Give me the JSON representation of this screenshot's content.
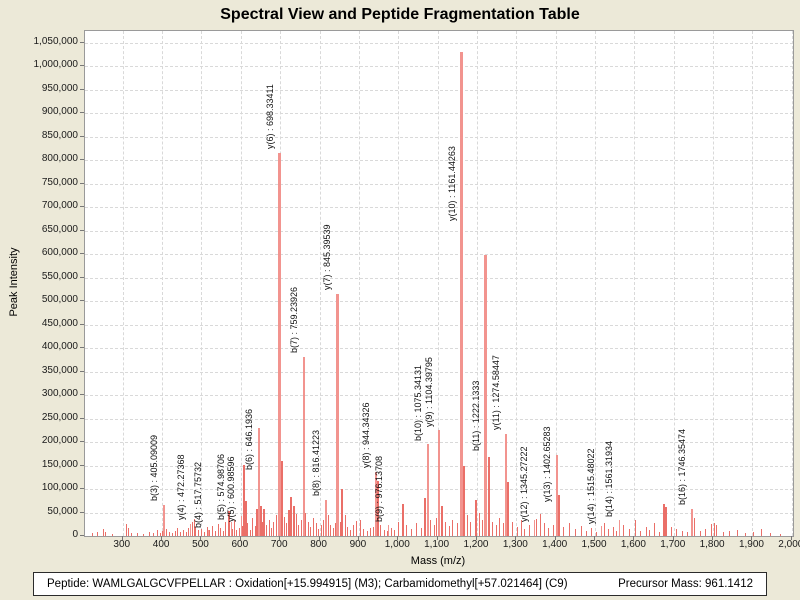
{
  "title": "Spectral View and Peptide Fragmentation Table",
  "colors": {
    "background": "#ece9d8",
    "plot_background": "#ffffff",
    "gridline": "#d9d9d9",
    "axis_border": "#9a9a9a",
    "peak_labeled": "#f2948f",
    "peak_noise": "#ea6f68",
    "text": "#000000"
  },
  "chart_data": {
    "type": "bar",
    "title": "Spectral View and Peptide Fragmentation Table",
    "xlabel": "Mass (m/z)",
    "ylabel": "Peak Intensity",
    "xlim": [
      204,
      2003
    ],
    "ylim": [
      0,
      1075000
    ],
    "grid": true,
    "x_ticks": [
      {
        "v": 300,
        "label": "300"
      },
      {
        "v": 400,
        "label": "400"
      },
      {
        "v": 500,
        "label": "500"
      },
      {
        "v": 600,
        "label": "600"
      },
      {
        "v": 700,
        "label": "700"
      },
      {
        "v": 800,
        "label": "800"
      },
      {
        "v": 900,
        "label": "900"
      },
      {
        "v": 1000,
        "label": "1,000"
      },
      {
        "v": 1100,
        "label": "1,100"
      },
      {
        "v": 1200,
        "label": "1,200"
      },
      {
        "v": 1300,
        "label": "1,300"
      },
      {
        "v": 1400,
        "label": "1,400"
      },
      {
        "v": 1500,
        "label": "1,500"
      },
      {
        "v": 1600,
        "label": "1,600"
      },
      {
        "v": 1700,
        "label": "1,700"
      },
      {
        "v": 1800,
        "label": "1,800"
      },
      {
        "v": 1900,
        "label": "1,900"
      },
      {
        "v": 2000,
        "label": "2,000"
      }
    ],
    "y_ticks": [
      {
        "v": 0,
        "label": "0"
      },
      {
        "v": 50000,
        "label": "50,000"
      },
      {
        "v": 100000,
        "label": "100,000"
      },
      {
        "v": 150000,
        "label": "150,000"
      },
      {
        "v": 200000,
        "label": "200,000"
      },
      {
        "v": 250000,
        "label": "250,000"
      },
      {
        "v": 300000,
        "label": "300,000"
      },
      {
        "v": 350000,
        "label": "350,000"
      },
      {
        "v": 400000,
        "label": "400,000"
      },
      {
        "v": 450000,
        "label": "450,000"
      },
      {
        "v": 500000,
        "label": "500,000"
      },
      {
        "v": 550000,
        "label": "550,000"
      },
      {
        "v": 600000,
        "label": "600,000"
      },
      {
        "v": 650000,
        "label": "650,000"
      },
      {
        "v": 700000,
        "label": "700,000"
      },
      {
        "v": 750000,
        "label": "750,000"
      },
      {
        "v": 800000,
        "label": "800,000"
      },
      {
        "v": 850000,
        "label": "850,000"
      },
      {
        "v": 900000,
        "label": "900,000"
      },
      {
        "v": 950000,
        "label": "950,000"
      },
      {
        "v": 1000000,
        "label": "1,000,000"
      },
      {
        "v": 1050000,
        "label": "1,050,000"
      }
    ],
    "labeled_peaks": [
      {
        "mz": 405.09009,
        "intensity": 65000,
        "label": "b(3) : 405.09009",
        "label_y": 75000
      },
      {
        "mz": 472.27368,
        "intensity": 25000,
        "label": "y(4) : 472.27368",
        "label_y": 33000
      },
      {
        "mz": 517.75732,
        "intensity": 13000,
        "label": "b(4) : 517.75732",
        "label_y": 18000
      },
      {
        "mz": 574.98706,
        "intensity": 30000,
        "label": "b(5) : 574.98706",
        "label_y": 34000
      },
      {
        "mz": 600.98596,
        "intensity": 43000,
        "label": "y(5) : 600.98596",
        "label_y": 30000
      },
      {
        "mz": 646.1936,
        "intensity": 230000,
        "label": "b(6) : 646.1936",
        "label_y": 140000
      },
      {
        "mz": 698.33411,
        "intensity": 815000,
        "label": "y(6) : 698.33411",
        "label_y": 823000
      },
      {
        "mz": 759.23926,
        "intensity": 380000,
        "label": "b(7) : 759.23926",
        "label_y": 390000
      },
      {
        "mz": 816.41223,
        "intensity": 76000,
        "label": "b(8) : 816.41223",
        "label_y": 85000
      },
      {
        "mz": 845.39539,
        "intensity": 515000,
        "label": "y(7) : 845.39539",
        "label_y": 524000
      },
      {
        "mz": 944.34326,
        "intensity": 137000,
        "label": "y(8) : 944.34326",
        "label_y": 144000
      },
      {
        "mz": 976.13708,
        "intensity": 24000,
        "label": "b(9) : 976.13708",
        "label_y": 29000
      },
      {
        "mz": 1075.34131,
        "intensity": 196000,
        "label": "b(10) : 1075.34131",
        "label_y": 203000
      },
      {
        "mz": 1104.39795,
        "intensity": 225000,
        "label": "y(9) : 1104.39795",
        "label_y": 232000
      },
      {
        "mz": 1161.44263,
        "intensity": 1030000,
        "label": "y(10) : 1161.44263",
        "label_y": 670000
      },
      {
        "mz": 1222.1333,
        "intensity": 598000,
        "label": "b(11) : 1222.1333",
        "label_y": 180000
      },
      {
        "mz": 1274.58447,
        "intensity": 218000,
        "label": "y(11) : 1274.58447",
        "label_y": 226000
      },
      {
        "mz": 1345.27222,
        "intensity": 34000,
        "label": "y(12) : 1345.27222",
        "label_y": 29000
      },
      {
        "mz": 1402.65283,
        "intensity": 172000,
        "label": "y(13) : 1402.65283",
        "label_y": 72000
      },
      {
        "mz": 1515.48022,
        "intensity": 21000,
        "label": "y(14) : 1515.48022",
        "label_y": 26000
      },
      {
        "mz": 1561.31934,
        "intensity": 34000,
        "label": "b(14) : 1561.31934",
        "label_y": 40000
      },
      {
        "mz": 1746.35474,
        "intensity": 58000,
        "label": "b(16) : 1746.35474",
        "label_y": 67000
      }
    ],
    "noise_peaks": [
      [
        222,
        6000
      ],
      [
        236,
        9000
      ],
      [
        252,
        14000
      ],
      [
        257,
        9000
      ],
      [
        275,
        5000
      ],
      [
        310,
        26000
      ],
      [
        314,
        18000
      ],
      [
        322,
        7000
      ],
      [
        338,
        6000
      ],
      [
        352,
        5000
      ],
      [
        368,
        9000
      ],
      [
        378,
        6000
      ],
      [
        388,
        12000
      ],
      [
        396,
        7000
      ],
      [
        401,
        11000
      ],
      [
        410,
        15000
      ],
      [
        418,
        8000
      ],
      [
        426,
        6000
      ],
      [
        433,
        11000
      ],
      [
        440,
        16000
      ],
      [
        447,
        8000
      ],
      [
        454,
        12000
      ],
      [
        461,
        9000
      ],
      [
        468,
        17000
      ],
      [
        476,
        30000
      ],
      [
        481,
        36000
      ],
      [
        486,
        20000
      ],
      [
        493,
        12000
      ],
      [
        501,
        15000
      ],
      [
        508,
        9000
      ],
      [
        514,
        20000
      ],
      [
        521,
        13000
      ],
      [
        528,
        22000
      ],
      [
        535,
        11000
      ],
      [
        542,
        25000
      ],
      [
        548,
        16000
      ],
      [
        555,
        11000
      ],
      [
        562,
        30000
      ],
      [
        569,
        54000
      ],
      [
        578,
        14000
      ],
      [
        584,
        34000
      ],
      [
        590,
        12000
      ],
      [
        596,
        18000
      ],
      [
        605,
        22000
      ],
      [
        608,
        152000
      ],
      [
        612,
        75000
      ],
      [
        618,
        28000
      ],
      [
        624,
        13000
      ],
      [
        630,
        38000
      ],
      [
        636,
        22000
      ],
      [
        642,
        58000
      ],
      [
        650,
        64000
      ],
      [
        655,
        30000
      ],
      [
        660,
        58000
      ],
      [
        666,
        24000
      ],
      [
        672,
        34000
      ],
      [
        678,
        17000
      ],
      [
        684,
        30000
      ],
      [
        690,
        44000
      ],
      [
        696,
        60000
      ],
      [
        702,
        55000
      ],
      [
        705,
        160000
      ],
      [
        710,
        40000
      ],
      [
        716,
        28000
      ],
      [
        722,
        55000
      ],
      [
        728,
        82000
      ],
      [
        735,
        64000
      ],
      [
        741,
        46000
      ],
      [
        747,
        24000
      ],
      [
        753,
        34000
      ],
      [
        764,
        50000
      ],
      [
        771,
        29000
      ],
      [
        778,
        19000
      ],
      [
        785,
        39000
      ],
      [
        791,
        27000
      ],
      [
        797,
        14000
      ],
      [
        804,
        24000
      ],
      [
        810,
        34000
      ],
      [
        822,
        44000
      ],
      [
        829,
        24000
      ],
      [
        836,
        17000
      ],
      [
        841,
        28000
      ],
      [
        852,
        30000
      ],
      [
        858,
        99000
      ],
      [
        865,
        45000
      ],
      [
        872,
        19000
      ],
      [
        879,
        12000
      ],
      [
        886,
        24000
      ],
      [
        895,
        31000
      ],
      [
        903,
        35000
      ],
      [
        912,
        14000
      ],
      [
        921,
        11000
      ],
      [
        930,
        17000
      ],
      [
        938,
        20000
      ],
      [
        949,
        118000
      ],
      [
        956,
        24000
      ],
      [
        964,
        13000
      ],
      [
        972,
        10000
      ],
      [
        982,
        16000
      ],
      [
        990,
        12000
      ],
      [
        1000,
        29000
      ],
      [
        1012,
        68000
      ],
      [
        1022,
        24000
      ],
      [
        1034,
        14000
      ],
      [
        1047,
        27000
      ],
      [
        1058,
        18000
      ],
      [
        1069,
        80000
      ],
      [
        1082,
        34000
      ],
      [
        1091,
        24000
      ],
      [
        1098,
        39000
      ],
      [
        1110,
        64000
      ],
      [
        1119,
        29000
      ],
      [
        1129,
        21000
      ],
      [
        1139,
        34000
      ],
      [
        1151,
        27000
      ],
      [
        1168,
        148000
      ],
      [
        1176,
        44000
      ],
      [
        1184,
        29000
      ],
      [
        1197,
        76000
      ],
      [
        1206,
        48000
      ],
      [
        1214,
        34000
      ],
      [
        1231,
        168000
      ],
      [
        1240,
        29000
      ],
      [
        1249,
        24000
      ],
      [
        1258,
        39000
      ],
      [
        1267,
        27000
      ],
      [
        1280,
        115000
      ],
      [
        1291,
        29000
      ],
      [
        1302,
        19000
      ],
      [
        1312,
        33000
      ],
      [
        1322,
        14000
      ],
      [
        1333,
        24000
      ],
      [
        1352,
        37000
      ],
      [
        1361,
        46000
      ],
      [
        1371,
        28000
      ],
      [
        1383,
        17000
      ],
      [
        1394,
        23000
      ],
      [
        1409,
        88000
      ],
      [
        1421,
        19000
      ],
      [
        1436,
        27000
      ],
      [
        1451,
        14000
      ],
      [
        1466,
        21000
      ],
      [
        1479,
        11000
      ],
      [
        1492,
        17000
      ],
      [
        1503,
        9000
      ],
      [
        1523,
        27000
      ],
      [
        1534,
        14000
      ],
      [
        1546,
        19000
      ],
      [
        1555,
        11000
      ],
      [
        1572,
        24000
      ],
      [
        1587,
        14000
      ],
      [
        1602,
        33000
      ],
      [
        1616,
        11000
      ],
      [
        1630,
        19000
      ],
      [
        1639,
        13000
      ],
      [
        1650,
        27000
      ],
      [
        1663,
        9000
      ],
      [
        1675,
        69000
      ],
      [
        1681,
        61000
      ],
      [
        1694,
        19000
      ],
      [
        1706,
        14000
      ],
      [
        1721,
        11000
      ],
      [
        1736,
        9000
      ],
      [
        1752,
        38000
      ],
      [
        1767,
        11000
      ],
      [
        1781,
        14000
      ],
      [
        1796,
        25000
      ],
      [
        1803,
        27000
      ],
      [
        1809,
        23000
      ],
      [
        1826,
        9000
      ],
      [
        1841,
        11000
      ],
      [
        1863,
        13000
      ],
      [
        1882,
        7000
      ],
      [
        1903,
        9000
      ],
      [
        1923,
        15000
      ],
      [
        1946,
        7000
      ],
      [
        1970,
        5000
      ]
    ]
  },
  "footer": {
    "peptide_label": "Peptide: WAMLGALGCVFPELLAR : Oxidation[+15.994915] (M3); Carbamidomethyl[+57.021464] (C9)",
    "precursor_label": "Precursor Mass: 961.1412"
  }
}
